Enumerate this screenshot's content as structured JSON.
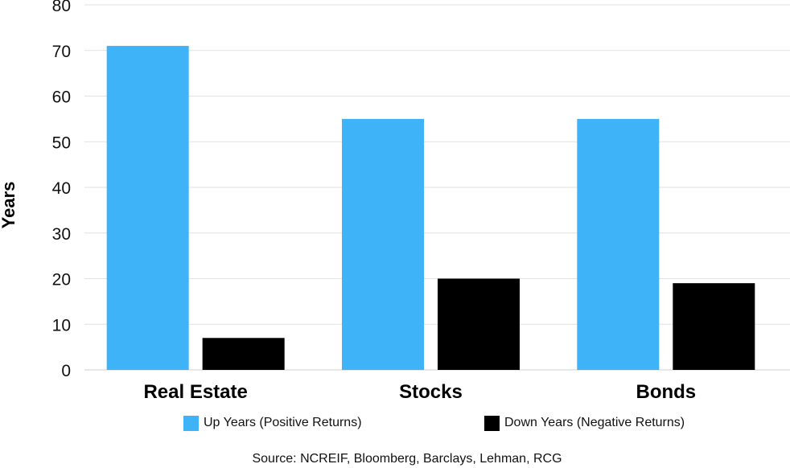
{
  "chart_data": {
    "type": "bar",
    "categories": [
      "Real Estate",
      "Stocks",
      "Bonds"
    ],
    "series": [
      {
        "name": "Up Years (Positive Returns)",
        "values": [
          71,
          55,
          55
        ],
        "color": "#3fb3f8"
      },
      {
        "name": "Down Years (Negative Returns)",
        "values": [
          7,
          20,
          19
        ],
        "color": "#000000"
      }
    ],
    "yticks": [
      "0",
      "10",
      "20",
      "30",
      "40",
      "50",
      "60",
      "70",
      "80"
    ],
    "ylabel": "Years",
    "xlabel": "",
    "ylim": [
      0,
      80
    ],
    "grid": true,
    "legend_position": "bottom"
  },
  "source_text": "Source: NCREIF, Bloomberg, Barclays, Lehman, RCG"
}
